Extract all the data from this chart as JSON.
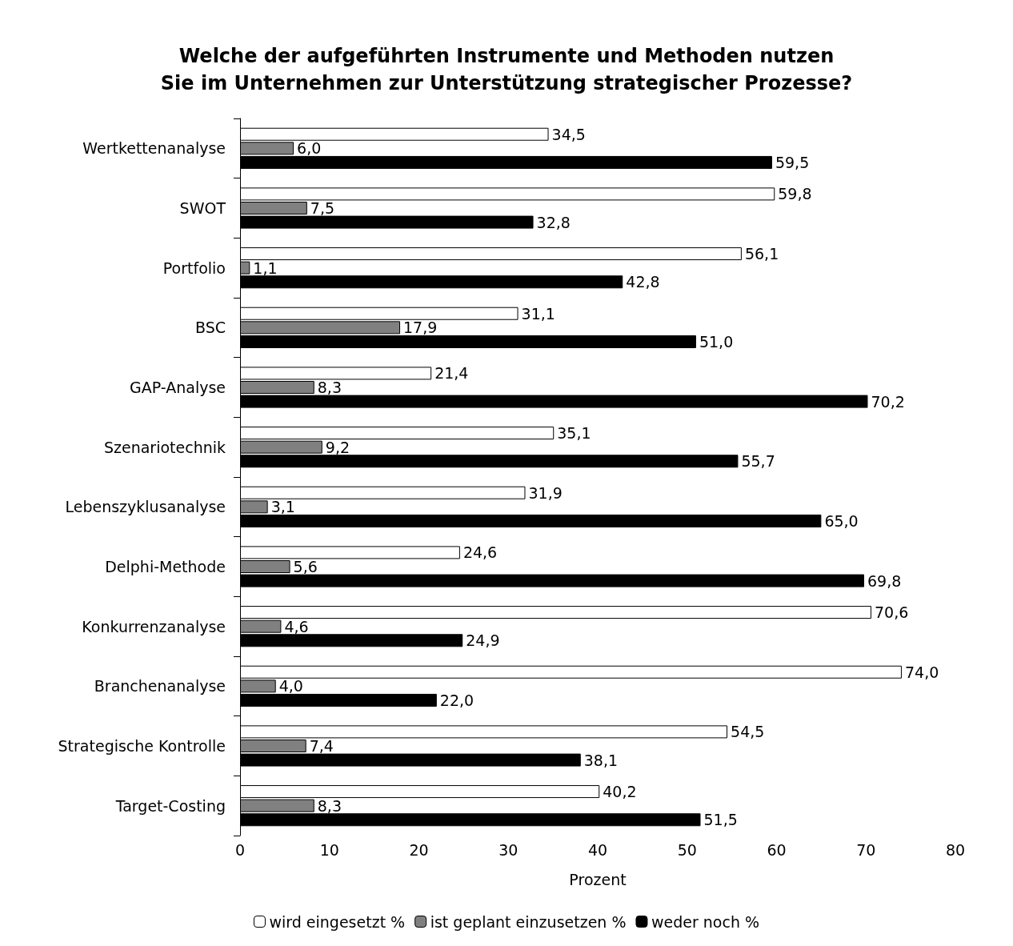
{
  "chart_data": {
    "type": "bar",
    "orientation": "horizontal",
    "title": "Welche der aufgeführten Instrumente und Methoden nutzen\nSie im Unternehmen zur Unterstützung strategischer Prozesse?",
    "xlabel": "Prozent",
    "categories": [
      "Wertkettenanalyse",
      "SWOT",
      "Portfolio",
      "BSC",
      "GAP-Analyse",
      "Szenariotechnik",
      "Lebenszyklusanalyse",
      "Delphi-Methode",
      "Konkurrenzanalyse",
      "Branchenanalyse",
      "Strategische Kontrolle",
      "Target-Costing"
    ],
    "series": [
      {
        "name": "wird eingesetzt %",
        "color": "#ffffff",
        "values": [
          34.5,
          59.8,
          56.1,
          31.1,
          21.4,
          35.1,
          31.9,
          24.6,
          70.6,
          74.0,
          54.5,
          40.2
        ],
        "value_labels": [
          "34,5",
          "59,8",
          "56,1",
          "31,1",
          "21,4",
          "35,1",
          "31,9",
          "24,6",
          "70,6",
          "74,0",
          "54,5",
          "40,2"
        ]
      },
      {
        "name": "ist geplant einzusetzen %",
        "color": "#808080",
        "values": [
          6.0,
          7.5,
          1.1,
          17.9,
          8.3,
          9.2,
          3.1,
          5.6,
          4.6,
          4.0,
          7.4,
          8.3
        ],
        "value_labels": [
          "6,0",
          "7,5",
          "1,1",
          "17,9",
          "8,3",
          "9,2",
          "3,1",
          "5,6",
          "4,6",
          "4,0",
          "7,4",
          "8,3"
        ]
      },
      {
        "name": "weder noch %",
        "color": "#000000",
        "values": [
          59.5,
          32.8,
          42.8,
          51.0,
          70.2,
          55.7,
          65.0,
          69.8,
          24.9,
          22.0,
          38.1,
          51.5
        ],
        "value_labels": [
          "59,5",
          "32,8",
          "42,8",
          "51,0",
          "70,2",
          "55,7",
          "65,0",
          "69,8",
          "24,9",
          "22,0",
          "38,1",
          "51,5"
        ]
      }
    ],
    "xlim": [
      0,
      80
    ],
    "xticks": [
      0,
      10,
      20,
      30,
      40,
      50,
      60,
      70,
      80
    ],
    "grid": false,
    "legend": "bottom"
  }
}
